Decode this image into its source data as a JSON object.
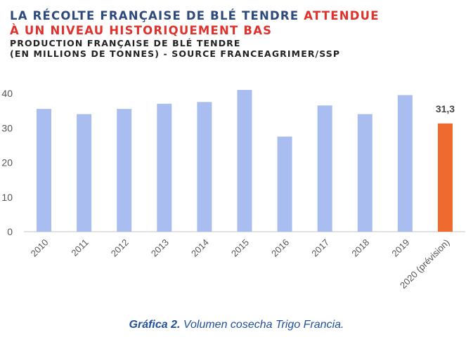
{
  "title": {
    "line1_part1": "LA RÉCOLTE FRANÇAISE DE BLÉ TENDRE",
    "line1_part2": "ATTENDUE",
    "line2": "À UN NIVEAU HISTORIQUEMENT BAS",
    "subtitle_line1": "PRODUCTION FRANÇAISE DE BLÉ TENDRE",
    "subtitle_line2": "(EN MILLIONS DE TONNES) - SOURCE FRANCEAGRIMER/SSP"
  },
  "caption": {
    "label": "Gráfica 2.",
    "text": "Volumen cosecha Trigo Francia."
  },
  "colors": {
    "title_blue": "#2e4a7d",
    "title_red": "#e0322d",
    "bar_blue": "#a9bdf0",
    "bar_forecast": "#ee6a2e",
    "caption_blue": "#1f4f9e"
  },
  "chart_data": {
    "type": "bar",
    "categories": [
      "2010",
      "2011",
      "2012",
      "2013",
      "2014",
      "2015",
      "2016",
      "2017",
      "2018",
      "2019",
      "2020 (prévision)"
    ],
    "values": [
      35.5,
      34.0,
      35.5,
      37.0,
      37.5,
      41.0,
      27.5,
      36.5,
      34.0,
      39.5,
      31.3
    ],
    "highlight_index": 10,
    "data_labels": {
      "10": "31,3"
    },
    "yticks": [
      "0",
      "10",
      "20",
      "30",
      "40"
    ],
    "ylim": [
      0,
      42
    ],
    "grid": false,
    "legend": "none"
  }
}
